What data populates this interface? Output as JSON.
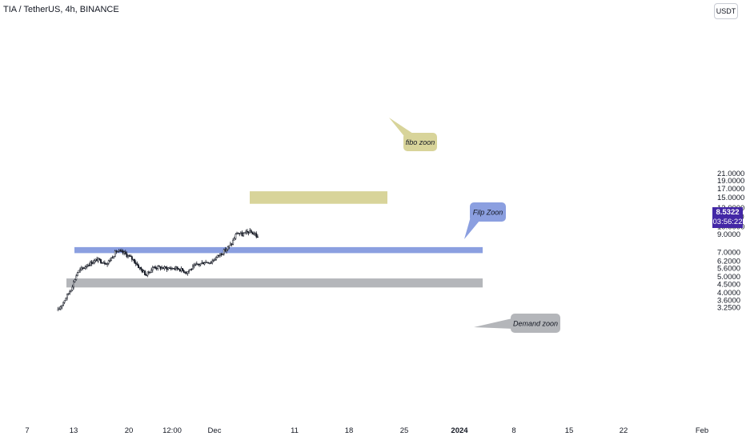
{
  "header": {
    "title": "TIA / TetherUS, 4h, BINANCE"
  },
  "toolbar": {
    "currency_label": "USDT"
  },
  "price_badge": {
    "price": "8.5322",
    "countdown": "03:56:22",
    "color": "#4327a6"
  },
  "axes": {
    "y_ticks": [
      "21.0000",
      "19.0000",
      "17.0000",
      "15.0000",
      "13.0000",
      "11.5000",
      "10.0000",
      "9.0000",
      "7.0000",
      "6.2000",
      "5.6000",
      "5.0000",
      "4.5000",
      "4.0000",
      "3.6000",
      "3.2500"
    ],
    "y_tick_values": [
      21,
      19,
      17,
      15,
      13,
      11.5,
      10,
      9,
      7,
      6.2,
      5.6,
      5,
      4.5,
      4,
      3.6,
      3.25
    ],
    "x_ticks": [
      "7",
      "13",
      "20",
      "12:00",
      "Dec",
      "11",
      "18",
      "25",
      "2024",
      "8",
      "15",
      "22",
      "Feb"
    ],
    "x_bold": [
      "2024"
    ]
  },
  "zones": {
    "fibo": {
      "label": "fibo zoon",
      "color": "#d8d49a"
    },
    "flip": {
      "label": "Filp Zoon",
      "color": "#8b9fe0"
    },
    "demand": {
      "label": "Demand zoon",
      "color": "#b4b6ba"
    }
  },
  "chart_data": {
    "type": "candlestick",
    "scale": "log",
    "pair": "TIA / TetherUS",
    "interval": "4h",
    "exchange": "BINANCE",
    "last_price": 8.5322,
    "waypoints": [
      [
        "Nov 11 00:00",
        3.1
      ],
      [
        "Nov 12 16:00",
        4.2
      ],
      [
        "Nov 13 12:00",
        5.3
      ],
      [
        "Nov 14 20:00",
        5.9
      ],
      [
        "Nov 16 00:00",
        6.3
      ],
      [
        "Nov 17 08:00",
        6.0
      ],
      [
        "Nov 18 12:00",
        7.1
      ],
      [
        "Nov 19 12:00",
        6.9
      ],
      [
        "Nov 20 16:00",
        6.3
      ],
      [
        "Nov 21 12:00",
        5.6
      ],
      [
        "Nov 22 08:00",
        5.1
      ],
      [
        "Nov 23 08:00",
        5.7
      ],
      [
        "Nov 24 16:00",
        5.6
      ],
      [
        "Nov 26 08:00",
        5.6
      ],
      [
        "Nov 27 12:00",
        5.3
      ],
      [
        "Nov 28 16:00",
        5.8
      ],
      [
        "Nov 29 20:00",
        6.1
      ],
      [
        "Nov 30 16:00",
        6.1
      ],
      [
        "Dec 1 12:00",
        6.6
      ],
      [
        "Dec 2 16:00",
        7.3
      ],
      [
        "Dec 3 08:00",
        7.9
      ],
      [
        "Dec 4 00:00",
        9.2
      ],
      [
        "Dec 4 16:00",
        8.9
      ],
      [
        "Dec 5 12:00",
        9.3
      ],
      [
        "Dec 6 08:00",
        9.0
      ],
      [
        "Dec 6 16:00",
        8.53
      ]
    ],
    "levels": {
      "fibo_zone": [
        13.7,
        16.3
      ],
      "flip_zone": [
        6.9,
        7.5
      ],
      "demand_zone": [
        4.28,
        4.85
      ]
    }
  }
}
